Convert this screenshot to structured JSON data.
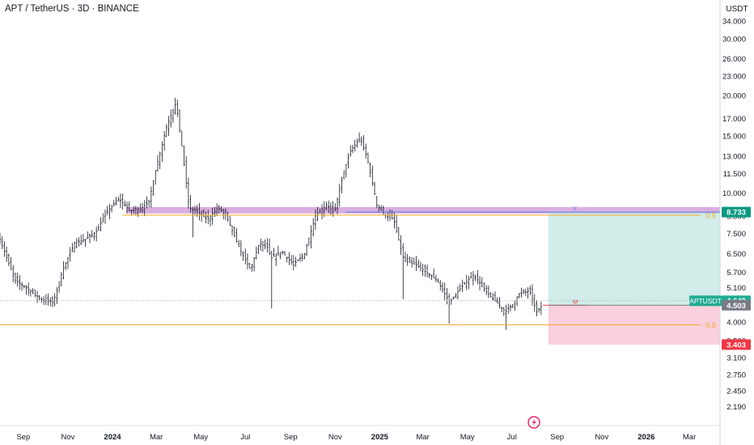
{
  "header": {
    "title": "APT / TetherUS · 3D · BINANCE"
  },
  "colors": {
    "candle": "#131722",
    "fib": "#f5a623",
    "zone": "#ce93d8",
    "target": "#b2dfdb",
    "stop": "#f8bbd0",
    "price_badge": "#22ab94",
    "level_badge": "#089981",
    "close_badge": "#787b86",
    "stop_badge": "#f23645",
    "line_y": "#5b7ce8",
    "line_m": "#f23645",
    "logo": "#e91e63"
  },
  "chart_data": {
    "type": "candlestick",
    "title": "APT / TetherUS · 3D · BINANCE",
    "y_unit": "USDT",
    "y_scale": "log",
    "ylim": [
      1.98,
      39.5
    ],
    "y_ticks": [
      "34.000",
      "30.000",
      "26.000",
      "23.000",
      "20.000",
      "17.000",
      "15.000",
      "13.000",
      "11.500",
      "10.000",
      "8.500",
      "7.500",
      "6.500",
      "5.700",
      "5.100",
      "4.000",
      "3.500",
      "3.100",
      "2.750",
      "2.450",
      "2.190"
    ],
    "x_ticks": [
      {
        "label": "Sep",
        "date": "2023-09-01"
      },
      {
        "label": "Nov",
        "date": "2023-11-01"
      },
      {
        "label": "2024",
        "date": "2024-01-01",
        "bold": true
      },
      {
        "label": "Mar",
        "date": "2024-03-01"
      },
      {
        "label": "May",
        "date": "2024-05-01"
      },
      {
        "label": "Jul",
        "date": "2024-07-01"
      },
      {
        "label": "Sep",
        "date": "2024-09-01"
      },
      {
        "label": "Nov",
        "date": "2024-11-01"
      },
      {
        "label": "2025",
        "date": "2025-01-01",
        "bold": true
      },
      {
        "label": "Mar",
        "date": "2025-03-01"
      },
      {
        "label": "May",
        "date": "2025-05-01"
      },
      {
        "label": "Jul",
        "date": "2025-07-01"
      },
      {
        "label": "Sep",
        "date": "2025-09-01"
      },
      {
        "label": "Nov",
        "date": "2025-11-01"
      },
      {
        "label": "2026",
        "date": "2026-01-01",
        "bold": true
      },
      {
        "label": "Mar",
        "date": "2026-03-01"
      }
    ],
    "xlim": [
      "2023-07-31",
      "2026-04-12"
    ],
    "price_path": [
      [
        "2023-07-31",
        7.2
      ],
      [
        "2023-08-20",
        5.4
      ],
      [
        "2023-09-10",
        5.0
      ],
      [
        "2023-09-25",
        4.7
      ],
      [
        "2023-10-12",
        4.6
      ],
      [
        "2023-10-25",
        5.8
      ],
      [
        "2023-11-10",
        7.0
      ],
      [
        "2023-11-25",
        7.2
      ],
      [
        "2023-12-10",
        7.6
      ],
      [
        "2023-12-25",
        8.8
      ],
      [
        "2024-01-10",
        9.6
      ],
      [
        "2024-01-25",
        8.8
      ],
      [
        "2024-02-10",
        9.0
      ],
      [
        "2024-02-20",
        9.4
      ],
      [
        "2024-03-01",
        12.0
      ],
      [
        "2024-03-15",
        16.0
      ],
      [
        "2024-03-28",
        19.0
      ],
      [
        "2024-04-05",
        14.0
      ],
      [
        "2024-04-15",
        9.0
      ],
      [
        "2024-04-25",
        8.8
      ],
      [
        "2024-05-10",
        8.3
      ],
      [
        "2024-05-25",
        9.0
      ],
      [
        "2024-06-05",
        8.5
      ],
      [
        "2024-06-20",
        7.0
      ],
      [
        "2024-07-01",
        6.2
      ],
      [
        "2024-07-08",
        5.8
      ],
      [
        "2024-07-20",
        7.0
      ],
      [
        "2024-07-31",
        6.8
      ],
      [
        "2024-08-05",
        6.3
      ],
      [
        "2024-08-20",
        6.6
      ],
      [
        "2024-09-05",
        6.0
      ],
      [
        "2024-09-20",
        6.5
      ],
      [
        "2024-10-05",
        8.5
      ],
      [
        "2024-10-20",
        9.2
      ],
      [
        "2024-10-31",
        8.7
      ],
      [
        "2024-11-12",
        11.5
      ],
      [
        "2024-11-22",
        13.5
      ],
      [
        "2024-12-05",
        14.8
      ],
      [
        "2024-12-15",
        12.8
      ],
      [
        "2024-12-28",
        9.2
      ],
      [
        "2025-01-10",
        8.5
      ],
      [
        "2025-01-20",
        8.3
      ],
      [
        "2025-02-03",
        6.2
      ],
      [
        "2025-02-20",
        6.0
      ],
      [
        "2025-03-10",
        5.6
      ],
      [
        "2025-03-20",
        5.4
      ],
      [
        "2025-04-07",
        4.6
      ],
      [
        "2025-04-25",
        5.2
      ],
      [
        "2025-05-10",
        5.6
      ],
      [
        "2025-05-25",
        5.0
      ],
      [
        "2025-06-10",
        4.6
      ],
      [
        "2025-06-22",
        4.3
      ],
      [
        "2025-07-01",
        4.5
      ],
      [
        "2025-07-12",
        4.9
      ],
      [
        "2025-07-25",
        5.0
      ],
      [
        "2025-08-04",
        4.3
      ],
      [
        "2025-08-12",
        4.503
      ]
    ],
    "wick_extremes": [
      {
        "date": "2024-03-28",
        "high": 19.7
      },
      {
        "date": "2024-04-20",
        "low": 7.3
      },
      {
        "date": "2024-08-05",
        "low": 4.4
      },
      {
        "date": "2024-12-05",
        "high": 15.4
      },
      {
        "date": "2025-02-03",
        "low": 4.7
      },
      {
        "date": "2025-04-07",
        "low": 3.95
      },
      {
        "date": "2025-06-22",
        "low": 3.78
      }
    ],
    "last_price": {
      "symbol": "APTUSDT",
      "value": 4.649
    },
    "close_label": {
      "value": 4.503
    },
    "annotations": [
      {
        "type": "zone",
        "from": 8.65,
        "to": 9.05,
        "start": "2024-01-20",
        "end": "2026-04-12"
      },
      {
        "type": "fib_line",
        "label": "0.5",
        "value": 8.55,
        "start": "2024-01-15",
        "end": "2026-04-12"
      },
      {
        "type": "fib_line",
        "label": "0.5",
        "value": 3.92,
        "start": "2023-07-31",
        "end": "2026-04-12"
      },
      {
        "type": "hline",
        "label": "Y",
        "value": 8.733,
        "start": "2024-11-15",
        "end": "2026-04-12",
        "color": "#5b7ce8"
      },
      {
        "type": "hline",
        "label": "M",
        "value": 4.503,
        "start": "2025-08-12",
        "end": "2025-10-10",
        "color": "#f23645"
      },
      {
        "type": "position_long",
        "entry": 4.503,
        "target": 8.733,
        "stop": 3.403,
        "start": "2025-08-20",
        "end": "2026-04-12"
      }
    ],
    "badges": [
      {
        "text": "8.733",
        "value": 8.733
      },
      {
        "text": "4.649",
        "value": 4.649
      },
      {
        "text": "4.503",
        "value": 4.503
      },
      {
        "text": "3.403",
        "value": 3.403
      }
    ]
  }
}
